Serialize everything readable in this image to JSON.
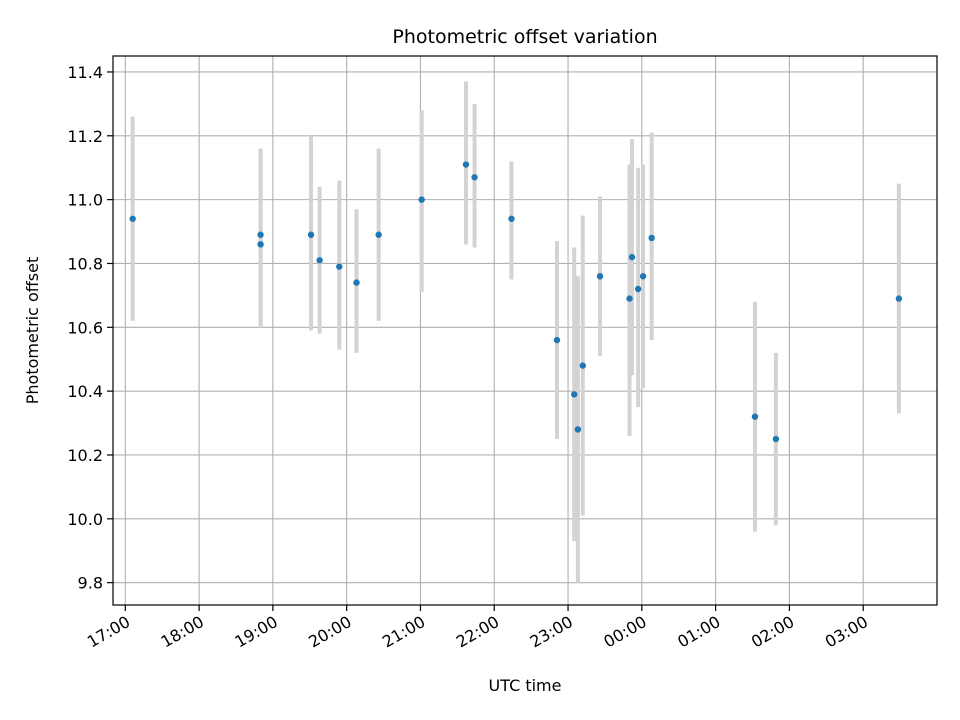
{
  "chart_data": {
    "type": "scatter",
    "title": "Photometric offset variation",
    "xlabel": "UTC time",
    "ylabel": "Photometric offset",
    "x_unit": "UTC time",
    "x_ticks": [
      "17:00",
      "18:00",
      "19:00",
      "20:00",
      "21:00",
      "22:00",
      "23:00",
      "00:00",
      "01:00",
      "02:00",
      "03:00"
    ],
    "xlim": [
      "16:50",
      "04:00"
    ],
    "y_ticks": [
      9.8,
      10.0,
      10.2,
      10.4,
      10.6,
      10.8,
      11.0,
      11.2,
      11.4
    ],
    "ylim": [
      9.73,
      11.45
    ],
    "grid": true,
    "point_color": "#1f77b4",
    "errorbar_color": "#d3d3d3",
    "points": [
      {
        "x": "17:06",
        "y": 10.94,
        "ylow": 10.62,
        "yhigh": 11.26
      },
      {
        "x": "18:50",
        "y": 10.89,
        "ylow": 10.6,
        "yhigh": 11.16
      },
      {
        "x": "18:50",
        "y": 10.86,
        "ylow": 10.6,
        "yhigh": 11.16
      },
      {
        "x": "19:31",
        "y": 10.89,
        "ylow": 10.59,
        "yhigh": 11.2
      },
      {
        "x": "19:38",
        "y": 10.81,
        "ylow": 10.58,
        "yhigh": 11.04
      },
      {
        "x": "19:54",
        "y": 10.79,
        "ylow": 10.53,
        "yhigh": 11.06
      },
      {
        "x": "20:08",
        "y": 10.74,
        "ylow": 10.52,
        "yhigh": 10.97
      },
      {
        "x": "20:26",
        "y": 10.89,
        "ylow": 10.62,
        "yhigh": 11.16
      },
      {
        "x": "21:01",
        "y": 11.0,
        "ylow": 10.71,
        "yhigh": 11.28
      },
      {
        "x": "21:37",
        "y": 11.11,
        "ylow": 10.86,
        "yhigh": 11.37
      },
      {
        "x": "21:44",
        "y": 11.07,
        "ylow": 10.85,
        "yhigh": 11.3
      },
      {
        "x": "22:14",
        "y": 10.94,
        "ylow": 10.75,
        "yhigh": 11.12
      },
      {
        "x": "22:51",
        "y": 10.56,
        "ylow": 10.25,
        "yhigh": 10.87
      },
      {
        "x": "23:05",
        "y": 10.39,
        "ylow": 9.93,
        "yhigh": 10.85
      },
      {
        "x": "23:08",
        "y": 10.28,
        "ylow": 9.8,
        "yhigh": 10.76
      },
      {
        "x": "23:12",
        "y": 10.48,
        "ylow": 10.01,
        "yhigh": 10.95
      },
      {
        "x": "23:26",
        "y": 10.76,
        "ylow": 10.51,
        "yhigh": 11.01
      },
      {
        "x": "23:50",
        "y": 10.69,
        "ylow": 10.26,
        "yhigh": 11.11
      },
      {
        "x": "23:52",
        "y": 10.82,
        "ylow": 10.45,
        "yhigh": 11.19
      },
      {
        "x": "23:57",
        "y": 10.72,
        "ylow": 10.35,
        "yhigh": 11.1
      },
      {
        "x": "00:01",
        "y": 10.76,
        "ylow": 10.41,
        "yhigh": 11.11
      },
      {
        "x": "00:08",
        "y": 10.88,
        "ylow": 10.56,
        "yhigh": 11.21
      },
      {
        "x": "01:32",
        "y": 10.32,
        "ylow": 9.96,
        "yhigh": 10.68
      },
      {
        "x": "01:49",
        "y": 10.25,
        "ylow": 9.98,
        "yhigh": 10.52
      },
      {
        "x": "03:29",
        "y": 10.69,
        "ylow": 10.33,
        "yhigh": 11.05
      }
    ]
  }
}
